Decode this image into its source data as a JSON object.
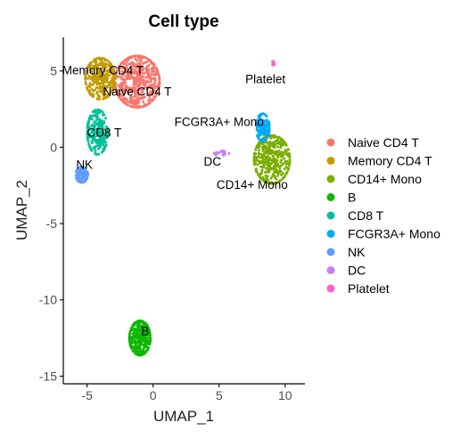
{
  "chart_data": {
    "type": "scatter",
    "title": "Cell type",
    "xlabel": "UMAP_1",
    "ylabel": "UMAP_2",
    "xlim": [
      -6.8,
      11.5
    ],
    "ylim": [
      -15.5,
      7.2
    ],
    "x_ticks": [
      -5,
      0,
      5,
      10
    ],
    "y_ticks": [
      5,
      0,
      -5,
      -10,
      -15
    ],
    "grid": false,
    "legend_position": "right",
    "series": [
      {
        "name": "Naive CD4 T",
        "color": "#F8766D"
      },
      {
        "name": "Memory CD4 T",
        "color": "#C49A00"
      },
      {
        "name": "CD14+ Mono",
        "color": "#7CAE00"
      },
      {
        "name": "B",
        "color": "#0CB702"
      },
      {
        "name": "CD8 T",
        "color": "#00C19A"
      },
      {
        "name": "FCGR3A+ Mono",
        "color": "#00A9FF"
      },
      {
        "name": "NK",
        "color": "#619CFF"
      },
      {
        "name": "DC",
        "color": "#C77CFF"
      },
      {
        "name": "Platelet",
        "color": "#FF61CC"
      }
    ],
    "clusters": [
      {
        "name": "Naive CD4 T",
        "center": [
          -1.2,
          4.3
        ],
        "spread": [
          1.5,
          1.5
        ],
        "n": 520
      },
      {
        "name": "Memory CD4 T",
        "center": [
          -4.0,
          4.5
        ],
        "spread": [
          1.0,
          1.2
        ],
        "n": 320
      },
      {
        "name": "CD14+ Mono",
        "center": [
          9.0,
          -0.8
        ],
        "spread": [
          1.2,
          1.4
        ],
        "n": 420
      },
      {
        "name": "B",
        "center": [
          -1.0,
          -12.5
        ],
        "spread": [
          0.7,
          1.0
        ],
        "n": 330
      },
      {
        "name": "CD8 T",
        "center": [
          -4.2,
          1.0
        ],
        "spread": [
          0.7,
          1.3
        ],
        "n": 210
      },
      {
        "name": "FCGR3A+ Mono",
        "center": [
          8.3,
          1.3
        ],
        "spread": [
          0.45,
          0.8
        ],
        "n": 130
      },
      {
        "name": "NK",
        "center": [
          -5.4,
          -1.8
        ],
        "spread": [
          0.4,
          0.45
        ],
        "n": 110
      },
      {
        "name": "DC",
        "center": [
          5.2,
          -0.4
        ],
        "spread": [
          0.5,
          0.15
        ],
        "n": 16
      },
      {
        "name": "Platelet",
        "center": [
          9.1,
          5.5
        ],
        "spread": [
          0.08,
          0.15
        ],
        "n": 10
      }
    ],
    "annotations": [
      {
        "text": "Memory CD4 T",
        "x": -3.8,
        "y": 5.0
      },
      {
        "text": "Naive CD4 T",
        "x": -1.2,
        "y": 3.6
      },
      {
        "text": "Platelet",
        "x": 8.5,
        "y": 4.4
      },
      {
        "text": "FCGR3A+ Mono",
        "x": 5.0,
        "y": 1.6
      },
      {
        "text": "CD8 T",
        "x": -3.7,
        "y": 0.9
      },
      {
        "text": "DC",
        "x": 4.5,
        "y": -1.0
      },
      {
        "text": "NK",
        "x": -5.2,
        "y": -1.2
      },
      {
        "text": "CD14+ Mono",
        "x": 7.5,
        "y": -2.5
      },
      {
        "text": "B",
        "x": -0.6,
        "y": -12.1
      }
    ]
  }
}
